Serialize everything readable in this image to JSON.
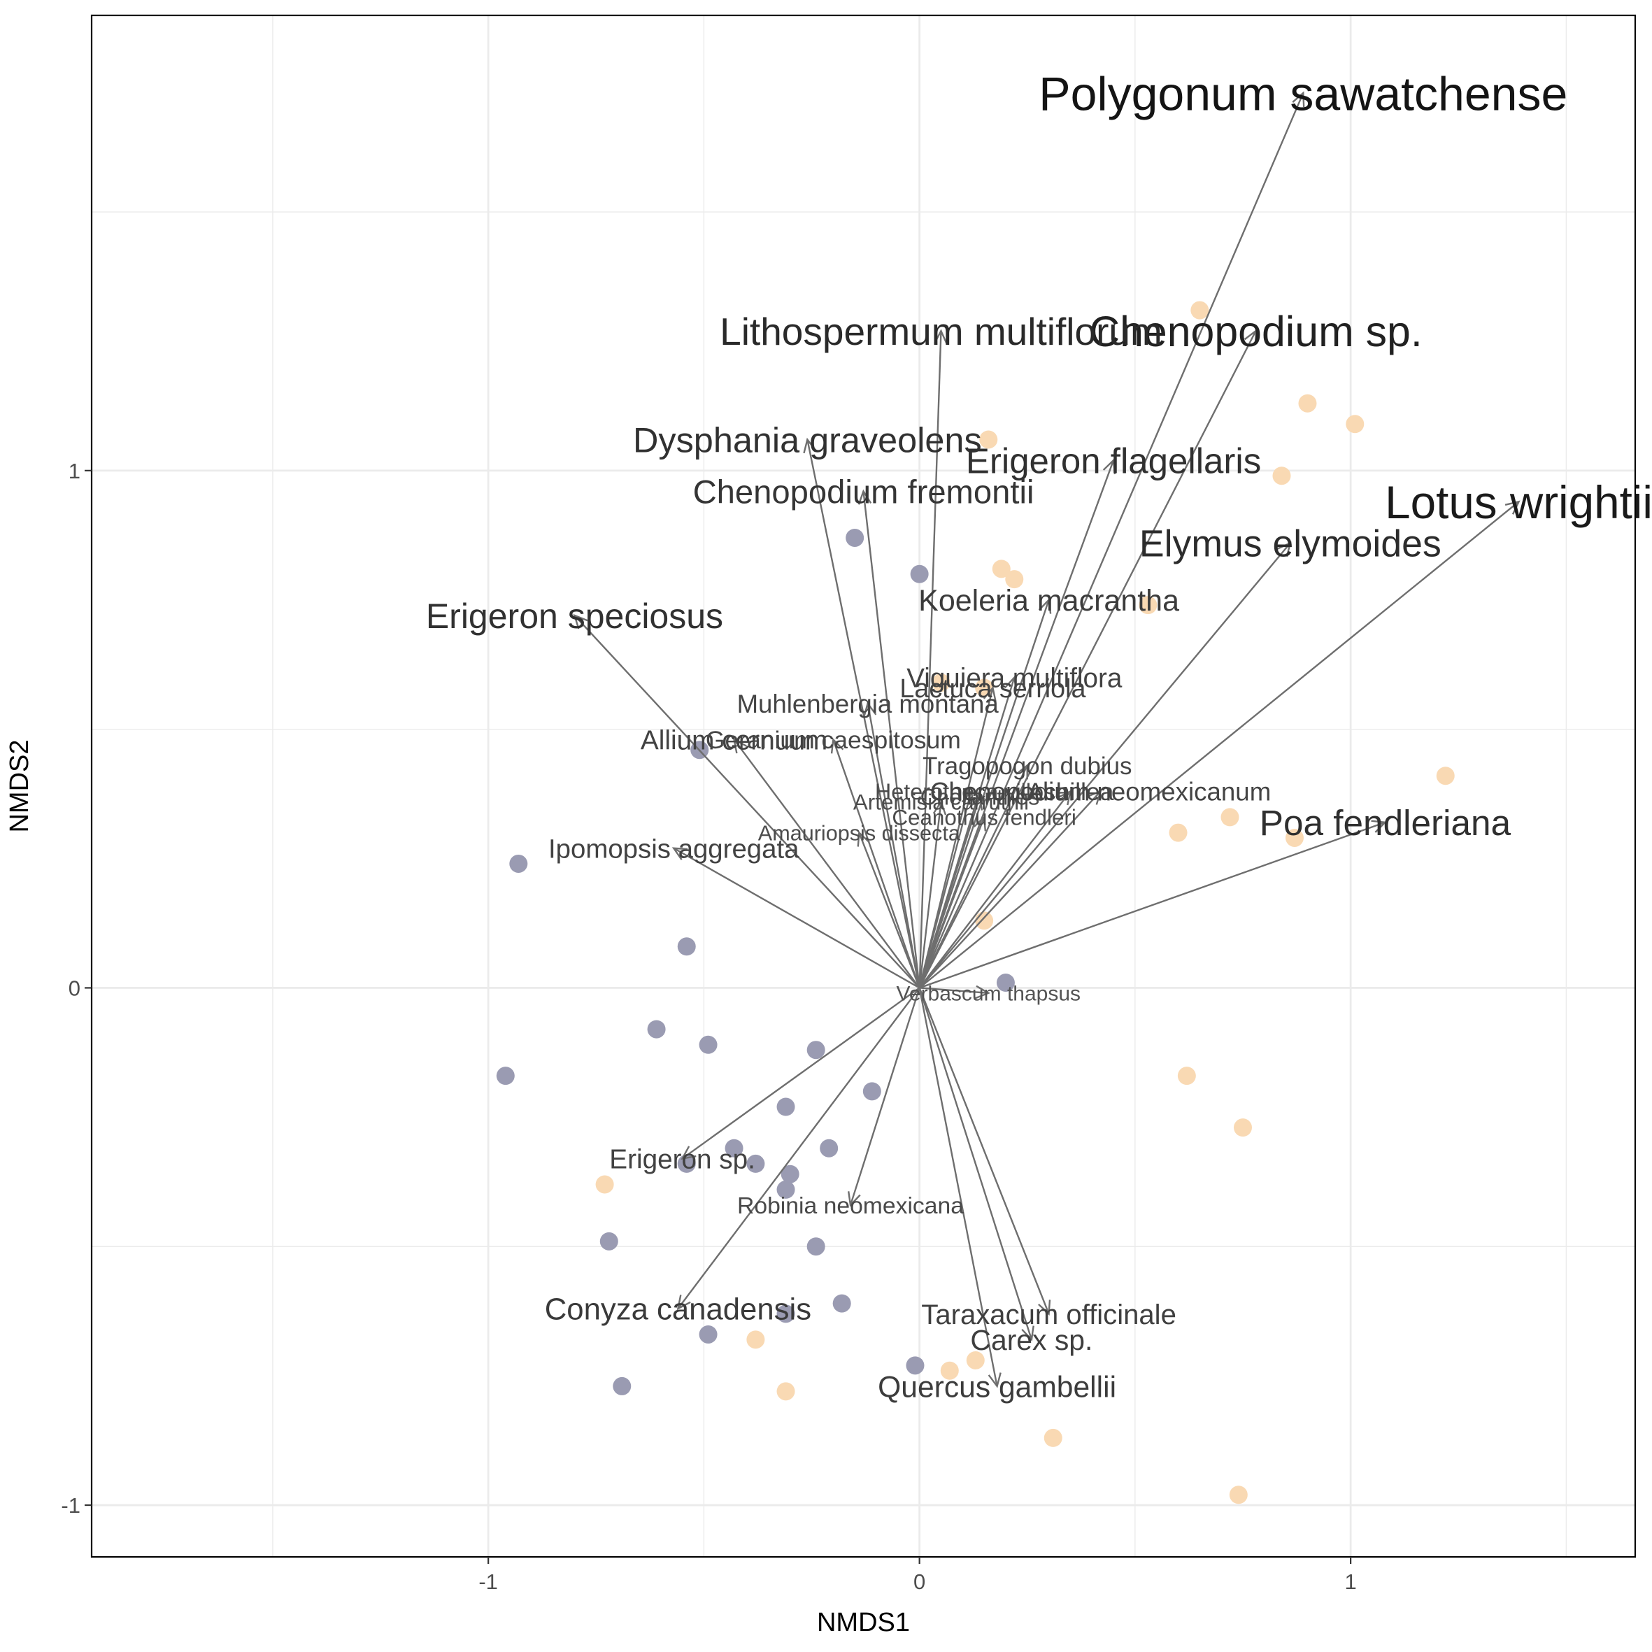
{
  "chart_data": {
    "type": "scatter",
    "xlabel": "NMDS1",
    "ylabel": "NMDS2",
    "xlim": [
      -1.92,
      1.66
    ],
    "ylim": [
      -1.1,
      1.88
    ],
    "x_ticks": [
      -1,
      0,
      1
    ],
    "y_ticks": [
      -1,
      0,
      1
    ],
    "grid": true,
    "colors": {
      "points_group_a": "#9a9bb2",
      "points_group_b": "#f9d9b3",
      "vectors": "#6e6e6e",
      "panel_border": "#000000",
      "gridline": "#ebebeb"
    },
    "series": [
      {
        "color": "#9a9bb2",
        "points": [
          [
            -0.15,
            0.87
          ],
          [
            0.0,
            0.8
          ],
          [
            -0.51,
            0.46
          ],
          [
            -0.93,
            0.24
          ],
          [
            -0.54,
            0.08
          ],
          [
            -0.61,
            -0.08
          ],
          [
            -0.49,
            -0.11
          ],
          [
            -0.96,
            -0.17
          ],
          [
            -0.24,
            -0.12
          ],
          [
            -0.11,
            -0.2
          ],
          [
            -0.31,
            -0.23
          ],
          [
            -0.21,
            -0.31
          ],
          [
            -0.43,
            -0.31
          ],
          [
            -0.54,
            -0.34
          ],
          [
            -0.38,
            -0.34
          ],
          [
            -0.3,
            -0.36
          ],
          [
            -0.31,
            -0.39
          ],
          [
            -0.72,
            -0.49
          ],
          [
            -0.24,
            -0.5
          ],
          [
            -0.18,
            -0.61
          ],
          [
            -0.31,
            -0.63
          ],
          [
            -0.49,
            -0.67
          ],
          [
            -0.69,
            -0.77
          ],
          [
            -0.01,
            -0.73
          ],
          [
            0.2,
            0.01
          ]
        ]
      },
      {
        "color": "#f9d9b3",
        "points": [
          [
            0.65,
            1.31
          ],
          [
            0.9,
            1.13
          ],
          [
            1.01,
            1.09
          ],
          [
            0.16,
            1.06
          ],
          [
            0.84,
            0.99
          ],
          [
            0.19,
            0.81
          ],
          [
            0.22,
            0.79
          ],
          [
            0.53,
            0.74
          ],
          [
            0.05,
            0.59
          ],
          [
            0.15,
            0.58
          ],
          [
            1.22,
            0.41
          ],
          [
            0.72,
            0.33
          ],
          [
            0.6,
            0.3
          ],
          [
            0.87,
            0.29
          ],
          [
            0.15,
            0.13
          ],
          [
            0.62,
            -0.17
          ],
          [
            0.75,
            -0.27
          ],
          [
            -0.73,
            -0.38
          ],
          [
            -0.38,
            -0.68
          ],
          [
            -0.31,
            -0.78
          ],
          [
            0.07,
            -0.74
          ],
          [
            0.13,
            -0.72
          ],
          [
            0.31,
            -0.87
          ],
          [
            0.74,
            -0.98
          ]
        ]
      }
    ],
    "vectors": [
      {
        "label": "Polygonum sawatchense",
        "x": 0.89,
        "y": 1.73
      },
      {
        "label": "Chenopodium sp.",
        "x": 0.78,
        "y": 1.27
      },
      {
        "label": "Lithospermum multiflorum",
        "x": 0.05,
        "y": 1.27
      },
      {
        "label": "Lotus wrightii",
        "x": 1.39,
        "y": 0.94
      },
      {
        "label": "Elymus elymoides",
        "x": 0.86,
        "y": 0.86
      },
      {
        "label": "Erigeron flagellaris",
        "x": 0.45,
        "y": 1.02
      },
      {
        "label": "Dysphania graveolens",
        "x": -0.26,
        "y": 1.06
      },
      {
        "label": "Chenopodium fremontii",
        "x": -0.13,
        "y": 0.96
      },
      {
        "label": "Koeleria macrantha",
        "x": 0.3,
        "y": 0.75
      },
      {
        "label": "Erigeron speciosus",
        "x": -0.8,
        "y": 0.72
      },
      {
        "label": "Viguiera multiflora",
        "x": 0.22,
        "y": 0.6
      },
      {
        "label": "Lactuca serriola",
        "x": 0.17,
        "y": 0.58
      },
      {
        "label": "Muhlenbergia montana",
        "x": -0.12,
        "y": 0.55
      },
      {
        "label": "Allium cernuum",
        "x": -0.43,
        "y": 0.48
      },
      {
        "label": "Geranium caespitosum",
        "x": -0.2,
        "y": 0.48
      },
      {
        "label": "Tragopogon dubius",
        "x": 0.25,
        "y": 0.43
      },
      {
        "label": "Heterotheca villosa",
        "x": 0.12,
        "y": 0.38
      },
      {
        "label": "Artemisia carruthii",
        "x": 0.05,
        "y": 0.36
      },
      {
        "label": "Cheilanthes",
        "x": 0.14,
        "y": 0.37
      },
      {
        "label": "Achillea",
        "x": 0.35,
        "y": 0.38
      },
      {
        "label": "Chenopodium neomexicanum",
        "x": 0.42,
        "y": 0.38
      },
      {
        "label": "Ceanothus fendleri",
        "x": 0.15,
        "y": 0.33
      },
      {
        "label": "Poa fendleriana",
        "x": 1.08,
        "y": 0.32
      },
      {
        "label": "Amauriopsis dissecta",
        "x": -0.14,
        "y": 0.3
      },
      {
        "label": "Ipomopsis aggregata",
        "x": -0.57,
        "y": 0.27
      },
      {
        "label": "Verbascum thapsus",
        "x": 0.16,
        "y": -0.01
      },
      {
        "label": "Erigeron sp.",
        "x": -0.55,
        "y": -0.33
      },
      {
        "label": "Robinia neomexicana",
        "x": -0.16,
        "y": -0.42
      },
      {
        "label": "Conyza canadensis",
        "x": -0.56,
        "y": -0.62
      },
      {
        "label": "Taraxacum officinale",
        "x": 0.3,
        "y": -0.63
      },
      {
        "label": "Carex sp.",
        "x": 0.26,
        "y": -0.68
      },
      {
        "label": "Quercus gambellii",
        "x": 0.18,
        "y": -0.77
      }
    ]
  }
}
